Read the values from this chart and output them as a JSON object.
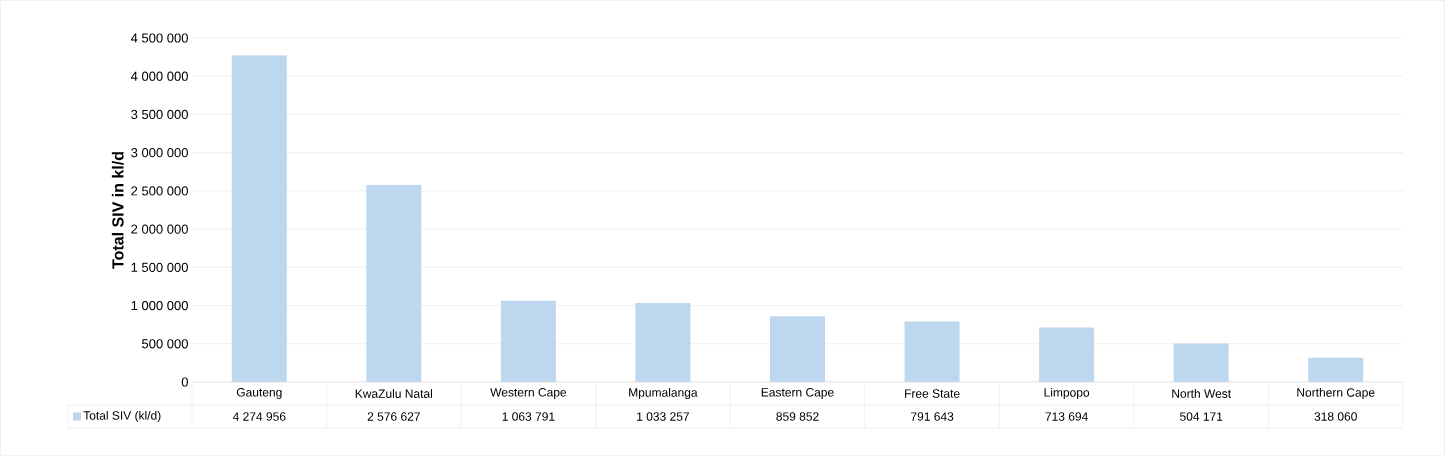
{
  "chart_data": {
    "type": "bar",
    "ylabel": "Total SIV in kl/d",
    "categories": [
      "Gauteng",
      "KwaZulu Natal",
      "Western Cape",
      "Mpumalanga",
      "Eastern Cape",
      "Free State",
      "Limpopo",
      "North West",
      "Northern Cape"
    ],
    "series": [
      {
        "name": "Total SIV (kl/d)",
        "color": "#bdd7ee",
        "values": [
          4274956,
          2576627,
          1063791,
          1033257,
          859852,
          791643,
          713694,
          504171,
          318060
        ],
        "value_labels": [
          "4 274 956",
          "2 576 627",
          "1 063 791",
          "1 033 257",
          "859 852",
          "791 643",
          "713 694",
          "504 171",
          "318 060"
        ]
      }
    ],
    "ylim": [
      0,
      4500000
    ],
    "yticks": [
      {
        "value": 0,
        "label": "0"
      },
      {
        "value": 500000,
        "label": "500 000"
      },
      {
        "value": 1000000,
        "label": "1 000 000"
      },
      {
        "value": 1500000,
        "label": "1 500 000"
      },
      {
        "value": 2000000,
        "label": "2 000 000"
      },
      {
        "value": 2500000,
        "label": "2 500 000"
      },
      {
        "value": 3000000,
        "label": "3 000 000"
      },
      {
        "value": 3500000,
        "label": "3 500 000"
      },
      {
        "value": 4000000,
        "label": "4 000 000"
      },
      {
        "value": 4500000,
        "label": "4 500 000"
      }
    ],
    "grid": "y",
    "legend": "bottom"
  }
}
